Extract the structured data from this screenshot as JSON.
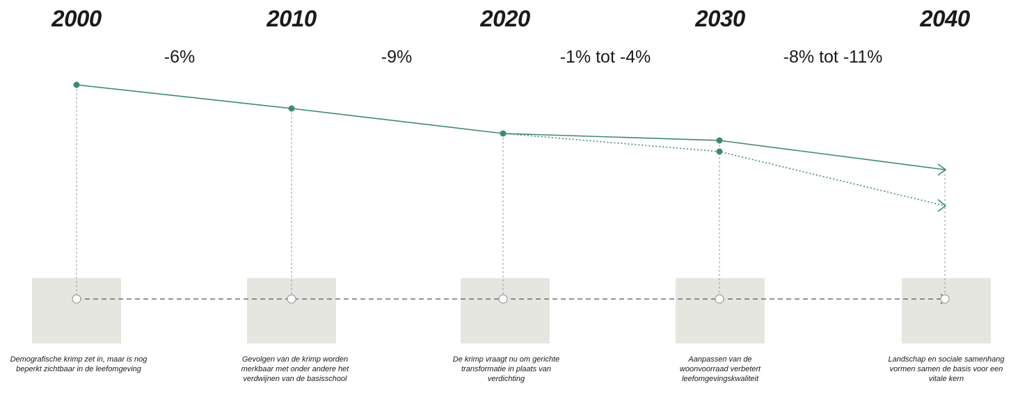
{
  "timeline": {
    "years": [
      "2000",
      "2010",
      "2020",
      "2030",
      "2040"
    ],
    "period_changes": [
      "-6%",
      "-9%",
      "-1% tot -4%",
      "-8% tot -11%"
    ],
    "captions": [
      "Demografische krimp zet in, maar is nog beperkt zichtbaar in de leefomgeving",
      "Gevolgen van de krimp worden merkbaar met onder andere het verdwijnen van de basisschool",
      "De krimp vraagt nu om gerichte transformatie in plaats van verdichting",
      "Aanpassen van de woonvoorraad verbetert leefomgevingskwaliteit",
      "Landschap en sociale samenhang vormen samen de basis voor een vitale kern"
    ]
  },
  "colors": {
    "trend_line": "#3a8a74",
    "guide_line": "#9a9a9a",
    "box_fill": "#e6e6e1",
    "baseline": "#555555"
  },
  "trend": {
    "main": {
      "style": "solid",
      "points": 5,
      "end": "arrow-icon"
    },
    "alternative": {
      "style": "dotted",
      "branches_from": "2020",
      "end": "arrow-icon"
    }
  }
}
